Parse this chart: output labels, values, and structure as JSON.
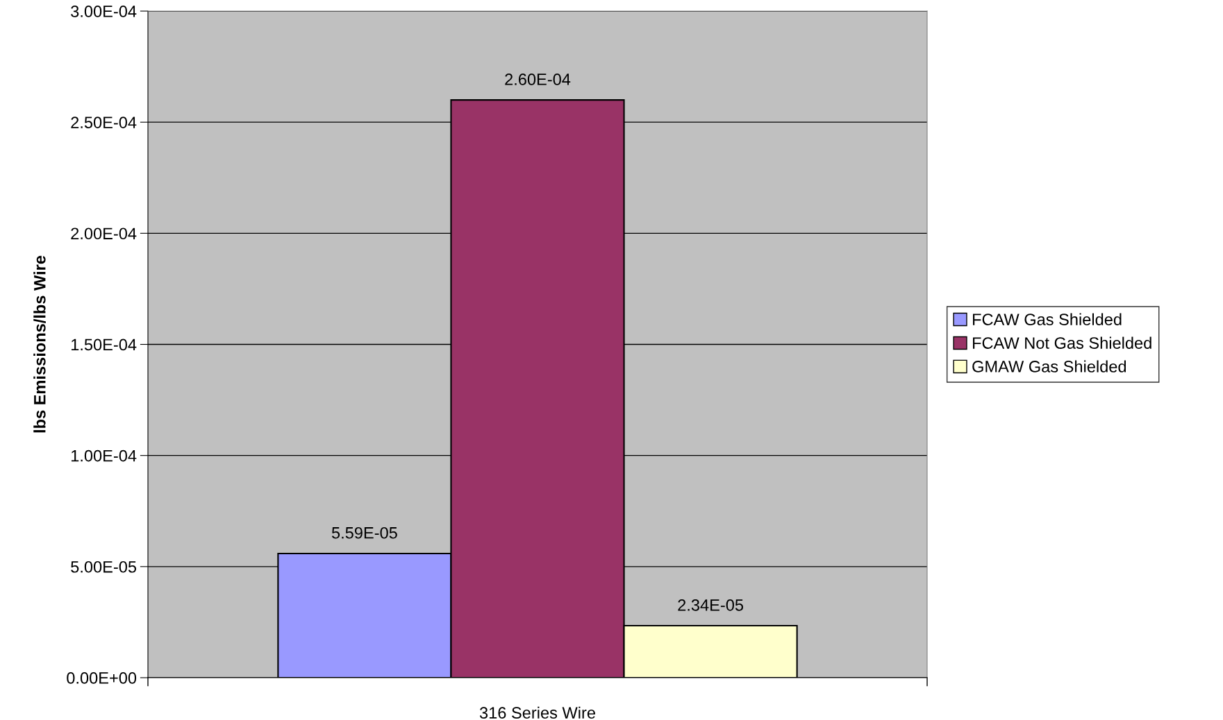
{
  "chart_data": {
    "type": "bar",
    "ylabel": "lbs Emissions/lbs Wire",
    "categories": [
      "316 Series Wire"
    ],
    "series": [
      {
        "name": "FCAW Gas Shielded",
        "color": "#9999ff",
        "values": [
          5.59e-05
        ],
        "value_labels": [
          "5.59E-05"
        ]
      },
      {
        "name": "FCAW Not Gas Shielded",
        "color": "#993366",
        "values": [
          0.00026
        ],
        "value_labels": [
          "2.60E-04"
        ]
      },
      {
        "name": "GMAW Gas Shielded",
        "color": "#ffffcc",
        "values": [
          2.34e-05
        ],
        "value_labels": [
          "2.34E-05"
        ]
      }
    ],
    "ylim": [
      0,
      0.0003
    ],
    "yticks": [
      {
        "value": 0,
        "label": "0.00E+00"
      },
      {
        "value": 5e-05,
        "label": "5.00E-05"
      },
      {
        "value": 0.0001,
        "label": "1.00E-04"
      },
      {
        "value": 0.00015,
        "label": "1.50E-04"
      },
      {
        "value": 0.0002,
        "label": "2.00E-04"
      },
      {
        "value": 0.00025,
        "label": "2.50E-04"
      },
      {
        "value": 0.0003,
        "label": "3.00E-04"
      }
    ],
    "grid": "y",
    "legend": "right"
  }
}
